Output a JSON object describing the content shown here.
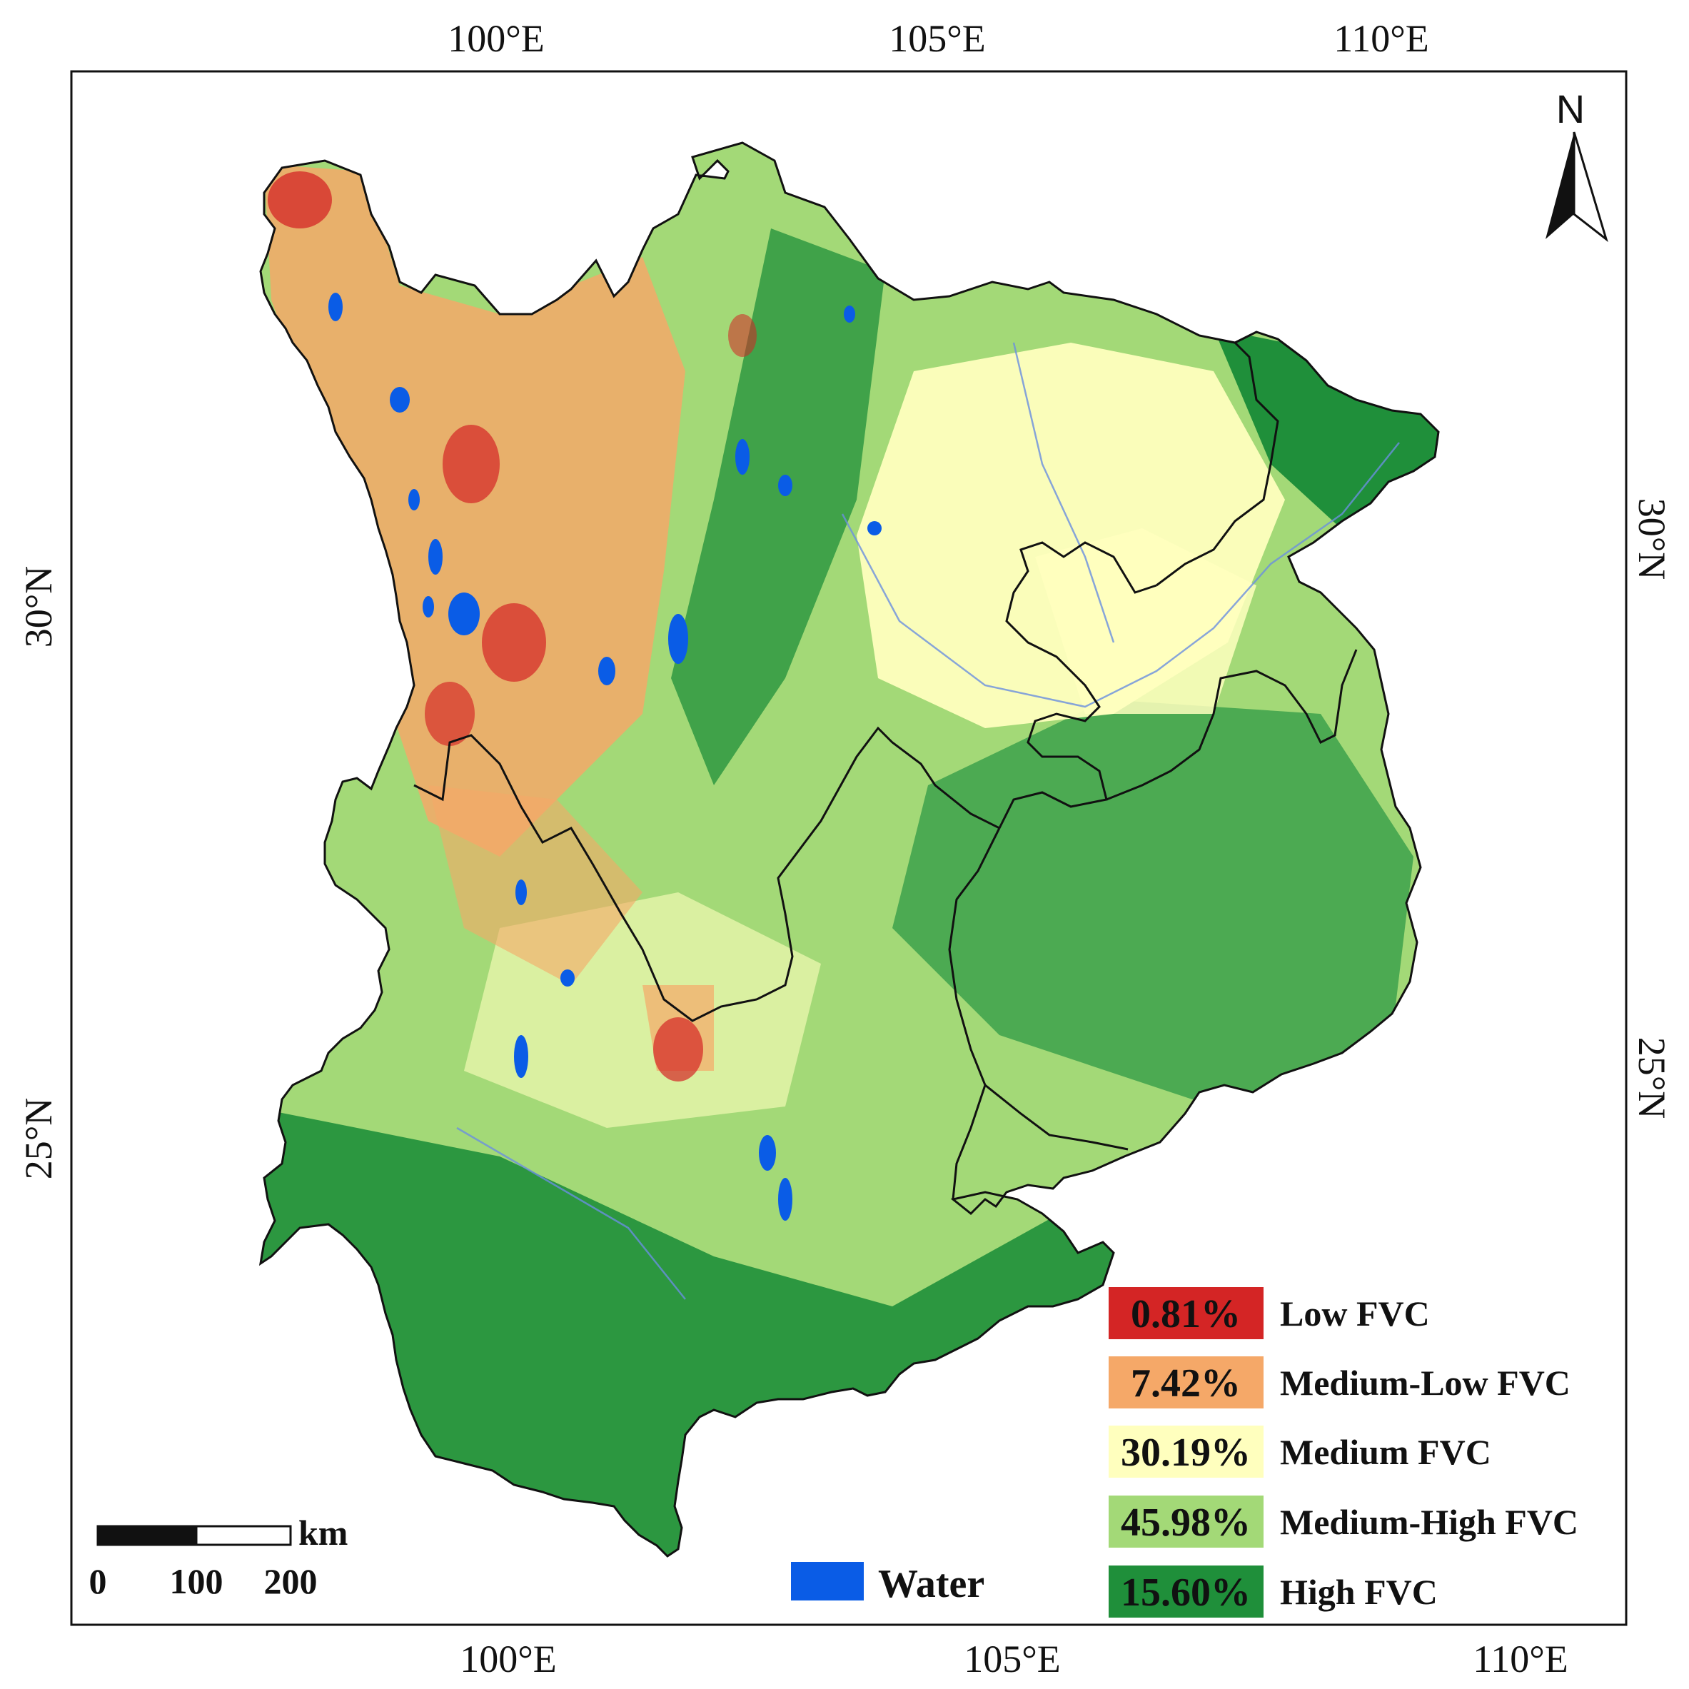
{
  "map": {
    "top_lon_ticks": [
      "100°E",
      "105°E",
      "110°E"
    ],
    "bottom_lon_ticks": [
      "100°E",
      "105°E",
      "110°E"
    ],
    "left_lat_ticks": [
      "30°N",
      "25°N"
    ],
    "right_lat_ticks": [
      "30°N",
      "25°N"
    ],
    "north_label": "N",
    "colors": {
      "frame": "#111111",
      "low": "#d42525",
      "medium_low": "#f5a868",
      "medium": "#ffffbe",
      "medium_high": "#a3d977",
      "high": "#1f8f3a",
      "water": "#0a5ce6"
    }
  },
  "legend": {
    "classes": [
      {
        "percent": "0.81%",
        "label": "Low FVC",
        "color": "#d42525"
      },
      {
        "percent": "7.42%",
        "label": "Medium-Low FVC",
        "color": "#f5a868"
      },
      {
        "percent": "30.19%",
        "label": "Medium FVC",
        "color": "#ffffbe"
      },
      {
        "percent": "45.98%",
        "label": "Medium-High FVC",
        "color": "#a3d977"
      },
      {
        "percent": "15.60%",
        "label": "High FVC",
        "color": "#1f8f3a"
      }
    ],
    "water": {
      "label": "Water",
      "color": "#0a5ce6"
    }
  },
  "scale_bar": {
    "unit": "km",
    "labels": [
      "0",
      "100",
      "200"
    ]
  }
}
